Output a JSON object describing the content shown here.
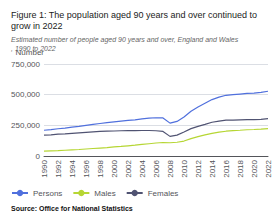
{
  "chart_data": {
    "type": "line",
    "title": "Figure 1: The population aged 90 years and over continued to grow in 2022",
    "subtitle": "Estimated number of people aged 90 years and over, England and Wales, 1990 to 2022",
    "ylabel": "Number",
    "source": "Source: Office for National Statistics",
    "x": [
      1990,
      1991,
      1992,
      1993,
      1994,
      1995,
      1996,
      1997,
      1998,
      1999,
      2000,
      2001,
      2002,
      2003,
      2004,
      2005,
      2006,
      2007,
      2008,
      2009,
      2010,
      2011,
      2012,
      2013,
      2014,
      2015,
      2016,
      2017,
      2018,
      2019,
      2020,
      2021,
      2022
    ],
    "series": [
      {
        "name": "Persons",
        "values": [
          210000,
          215000,
          222000,
          228000,
          235000,
          242000,
          250000,
          258000,
          265000,
          272000,
          278000,
          284000,
          290000,
          295000,
          302000,
          308000,
          312000,
          310000,
          268000,
          282000,
          318000,
          365000,
          400000,
          430000,
          460000,
          480000,
          495000,
          500000,
          505000,
          510000,
          512000,
          518000,
          528000
        ]
      },
      {
        "name": "Males",
        "values": [
          40000,
          42000,
          44000,
          47000,
          50000,
          53000,
          57000,
          61000,
          65000,
          69000,
          74000,
          78000,
          83000,
          88000,
          94000,
          100000,
          106000,
          110000,
          108000,
          112000,
          122000,
          142000,
          158000,
          172000,
          185000,
          195000,
          202000,
          207000,
          210000,
          214000,
          216000,
          219000,
          223000
        ]
      },
      {
        "name": "Females",
        "values": [
          170000,
          173000,
          178000,
          181000,
          185000,
          189000,
          193000,
          197000,
          200000,
          203000,
          204000,
          206000,
          207000,
          207000,
          208000,
          208000,
          206000,
          200000,
          160000,
          170000,
          196000,
          223000,
          242000,
          258000,
          275000,
          285000,
          293000,
          293000,
          295000,
          296000,
          296000,
          299000,
          305000
        ]
      }
    ],
    "xlim": [
      1990,
      2022
    ],
    "xticks": [
      1990,
      1992,
      1994,
      1996,
      1998,
      2000,
      2002,
      2004,
      2006,
      2008,
      2010,
      2012,
      2014,
      2016,
      2018,
      2020,
      2022
    ],
    "ylim": [
      0,
      750000
    ],
    "yticks": [
      0,
      {
        "value": 250000,
        "label": "250,000"
      },
      {
        "value": 500000,
        "label": "500,000"
      },
      {
        "value": 750000,
        "label": "750,000"
      }
    ],
    "grid": true,
    "legend": "bottom"
  }
}
